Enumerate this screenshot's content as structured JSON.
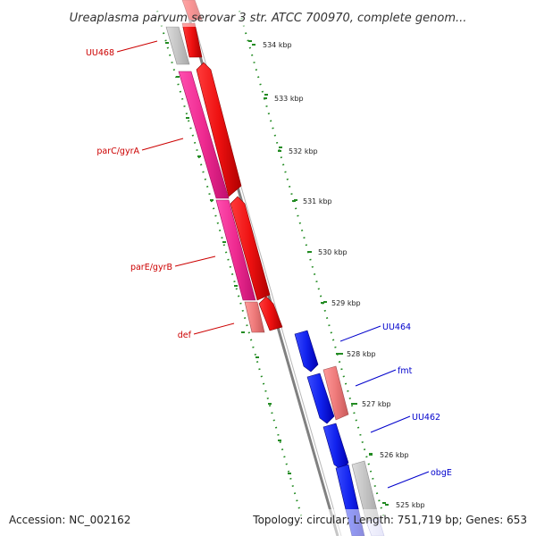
{
  "title": "Ureaplasma parvum serovar 3 str. ATCC 700970, complete genom...",
  "footer": {
    "accession": "Accession: NC_002162",
    "summary": "Topology: circular; Length: 751,719 bp; Genes: 653"
  },
  "colors": {
    "forward_label": "#cc0000",
    "reverse_label": "#0000cc",
    "tick": "#228b22",
    "backbone": "#808080",
    "forward_cds": "#ee1111",
    "reverse_cds": "#1122ee",
    "feature_pink": "#ee2a90",
    "feature_salmon": "#ee7a7a",
    "feature_gray": "#c4c4c4"
  },
  "ticks": [
    {
      "label": "534 kbp",
      "kbp": 534
    },
    {
      "label": "533 kbp",
      "kbp": 533
    },
    {
      "label": "532 kbp",
      "kbp": 532
    },
    {
      "label": "531 kbp",
      "kbp": 531
    },
    {
      "label": "530 kbp",
      "kbp": 530
    },
    {
      "label": "529 kbp",
      "kbp": 529
    },
    {
      "label": "528 kbp",
      "kbp": 528
    },
    {
      "label": "527 kbp",
      "kbp": 527
    },
    {
      "label": "526 kbp",
      "kbp": 526
    },
    {
      "label": "525 kbp",
      "kbp": 525
    }
  ],
  "gene_labels": [
    {
      "text": "UU468",
      "strand": "forward"
    },
    {
      "text": "parC/gyrA",
      "strand": "forward"
    },
    {
      "text": "parE/gyrB",
      "strand": "forward"
    },
    {
      "text": "def",
      "strand": "forward"
    },
    {
      "text": "UU464",
      "strand": "reverse"
    },
    {
      "text": "fmt",
      "strand": "reverse"
    },
    {
      "text": "UU462",
      "strand": "reverse"
    },
    {
      "text": "obgE",
      "strand": "reverse"
    }
  ]
}
